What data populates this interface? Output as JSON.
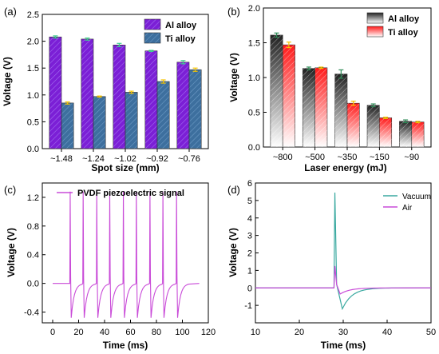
{
  "chart_data": [
    {
      "panel": "(a)",
      "type": "bar",
      "xlabel": "Spot size (mm)",
      "ylabel": "Voltage (V)",
      "ylim": [
        0,
        2.5
      ],
      "yticks": [
        "0.0",
        "0.5",
        "1.0",
        "1.5",
        "2.0",
        "2.5"
      ],
      "categories": [
        "~1.48",
        "~1.24",
        "~1.02",
        "~0.92",
        "~0.76"
      ],
      "series": [
        {
          "name": "Al alloy",
          "color": "#7b1fd6",
          "error_color": "#3ccf8e",
          "values": [
            2.08,
            2.04,
            1.93,
            1.82,
            1.61
          ],
          "errors": [
            0.02,
            0.02,
            0.03,
            0.01,
            0.03
          ]
        },
        {
          "name": "Ti alloy",
          "color": "#3d6f9e",
          "error_color": "#f5c400",
          "values": [
            0.85,
            0.97,
            1.05,
            1.25,
            1.47
          ],
          "errors": [
            0.02,
            0.01,
            0.02,
            0.03,
            0.03
          ]
        }
      ],
      "legend": "top-right",
      "grid": false
    },
    {
      "panel": "(b)",
      "type": "bar",
      "xlabel": "Laser energy (mJ)",
      "ylabel": "Voltage (V)",
      "ylim": [
        0,
        2.0
      ],
      "yticks": [
        "0.0",
        "0.5",
        "1.0",
        "1.5",
        "2.0"
      ],
      "categories": [
        "~800",
        "~500",
        "~350",
        "~150",
        "~90"
      ],
      "series": [
        {
          "name": "Al alloy",
          "color": "#222222",
          "error_color": "#2e8b57",
          "values": [
            1.61,
            1.13,
            1.05,
            0.6,
            0.37
          ],
          "errors": [
            0.03,
            0.02,
            0.06,
            0.02,
            0.02
          ]
        },
        {
          "name": "Ti alloy",
          "color": "#ff2a2a",
          "error_color": "#f5c400",
          "values": [
            1.47,
            1.14,
            0.63,
            0.42,
            0.36
          ],
          "errors": [
            0.04,
            0.01,
            0.03,
            0.01,
            0.01
          ]
        }
      ],
      "legend": "top-right",
      "grid": false
    },
    {
      "panel": "(c)",
      "type": "line",
      "xlabel": "Time (ms)",
      "ylabel": "Voltage (V)",
      "xlim": [
        -8,
        120
      ],
      "ylim": [
        -0.55,
        1.4
      ],
      "xticks": [
        "0",
        "20",
        "40",
        "60",
        "80",
        "100",
        "120"
      ],
      "yticks": [
        "-0.4",
        "0.0",
        "0.4",
        "0.8",
        "1.2"
      ],
      "series": [
        {
          "name": "PVDF piezoelectric signal",
          "color": "#c94bd8",
          "baseline_start": 0,
          "pulse_times": [
            13.5,
            23.5,
            34,
            44,
            54.5,
            64.5,
            75,
            85,
            95.5
          ],
          "peak": 1.28,
          "trough": -0.48,
          "end": 113
        }
      ],
      "legend": "top-left",
      "grid": false
    },
    {
      "panel": "(d)",
      "type": "line",
      "xlabel": "Time (ms)",
      "ylabel": "Voltage (V)",
      "xlim": [
        10,
        50
      ],
      "ylim": [
        -2,
        6
      ],
      "xticks": [
        "10",
        "20",
        "30",
        "40",
        "50"
      ],
      "yticks": [
        "-1",
        "0",
        "1",
        "2",
        "3",
        "4",
        "5",
        "6"
      ],
      "series": [
        {
          "name": "Vacuum",
          "color": "#3aa9a0",
          "pulse_time": 28,
          "peak": 5.45,
          "trough": -1.2,
          "trough_time": 29.8
        },
        {
          "name": "Air",
          "color": "#c94bd8",
          "pulse_time": 28,
          "peak": 1.25,
          "trough": -0.35,
          "trough_time": 29.3
        }
      ],
      "legend": "top-right",
      "grid": false
    }
  ]
}
